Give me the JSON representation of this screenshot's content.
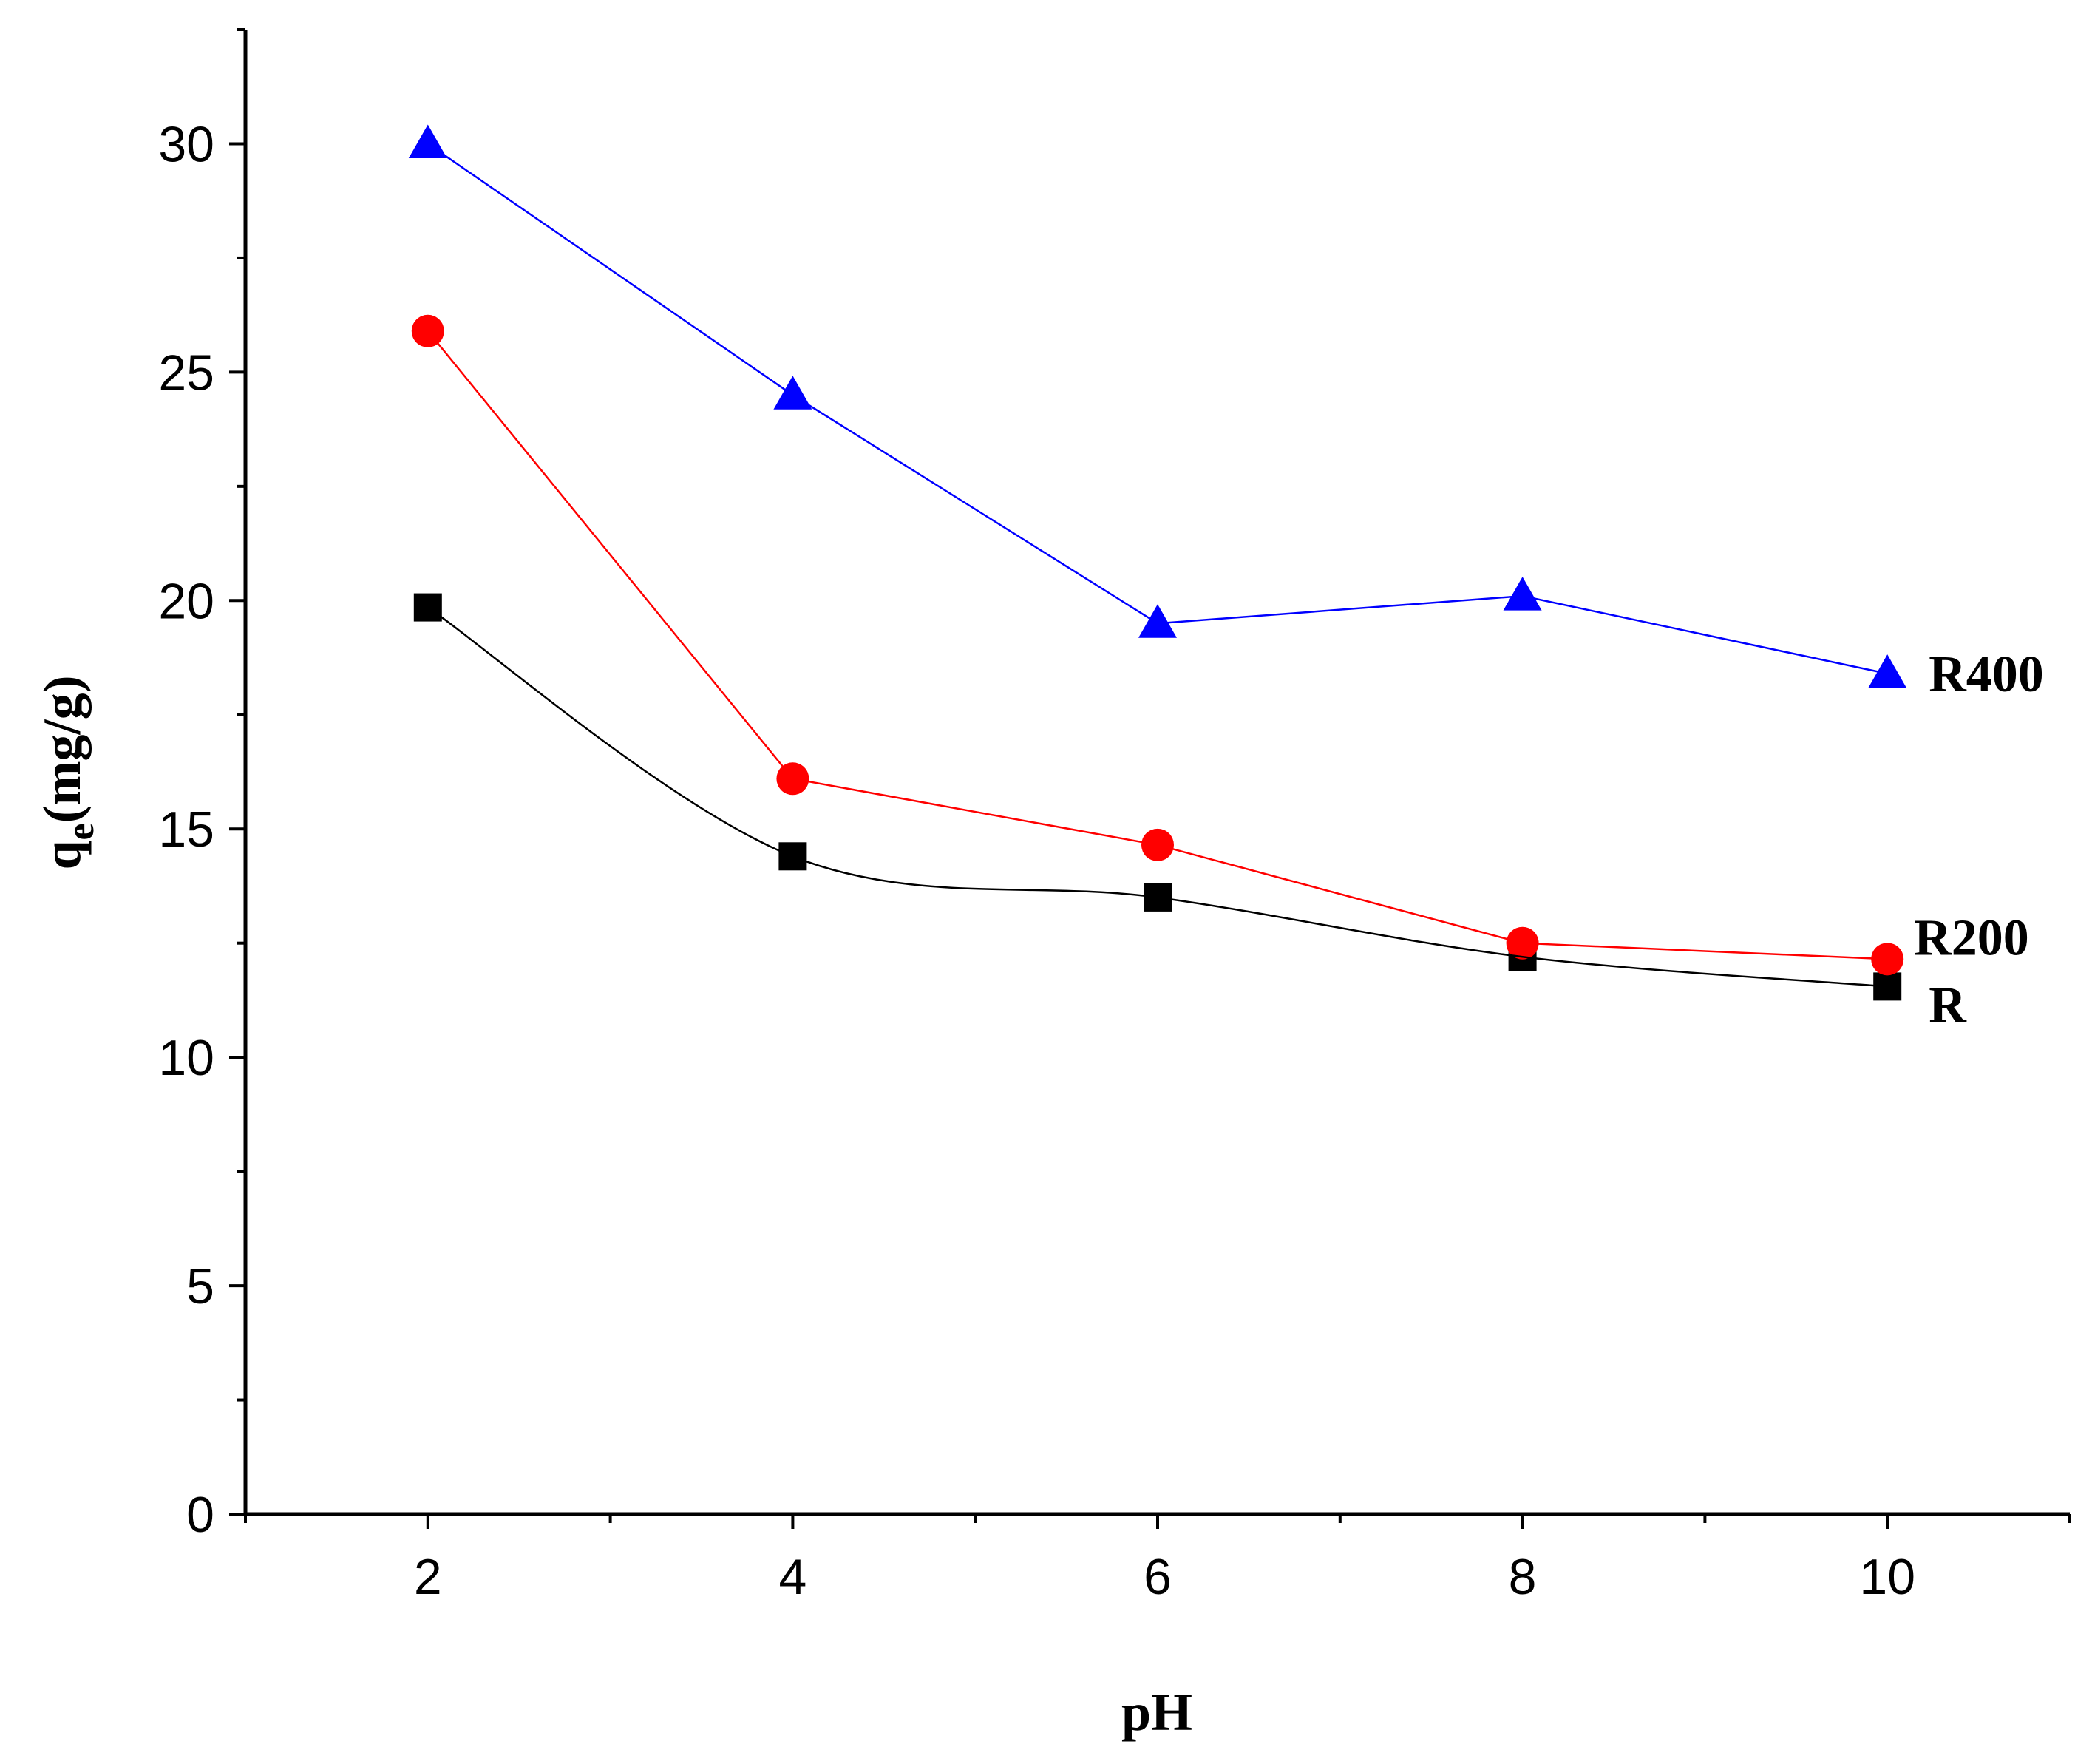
{
  "chart_data": {
    "type": "line",
    "title": "",
    "xlabel": "pH",
    "ylabel": {
      "symbol": "q",
      "subscript": "e",
      "unit": "(mg/g)"
    },
    "xlim": [
      1,
      11
    ],
    "ylim": [
      0,
      32.5
    ],
    "x_ticks": [
      2,
      4,
      6,
      8,
      10
    ],
    "x_tick_labels": [
      "2",
      "4",
      "6",
      "8",
      "10"
    ],
    "x_minor_ticks": [
      1,
      3,
      5,
      7,
      9,
      11
    ],
    "y_ticks": [
      0,
      5,
      10,
      15,
      20,
      25,
      30
    ],
    "y_tick_labels": [
      "0",
      "5",
      "10",
      "15",
      "20",
      "25",
      "30"
    ],
    "y_minor_ticks": [
      2.5,
      7.5,
      12.5,
      17.5,
      22.5,
      27.5,
      32.5
    ],
    "grid": false,
    "series": [
      {
        "name": "R",
        "x": [
          2,
          4,
          6,
          8,
          10
        ],
        "values": [
          19.85,
          14.4,
          13.5,
          12.2,
          11.55
        ],
        "color": "#000000",
        "marker": "square",
        "smooth": true
      },
      {
        "name": "R200",
        "x": [
          2,
          4,
          6,
          8,
          10
        ],
        "values": [
          25.9,
          16.1,
          14.65,
          12.5,
          12.15
        ],
        "color": "#ff0000",
        "marker": "circle",
        "smooth": false
      },
      {
        "name": "R400",
        "x": [
          2,
          4,
          6,
          8,
          10
        ],
        "values": [
          30.0,
          24.5,
          19.5,
          20.1,
          18.4
        ],
        "color": "#0000ff",
        "marker": "triangle",
        "smooth": false
      }
    ]
  }
}
